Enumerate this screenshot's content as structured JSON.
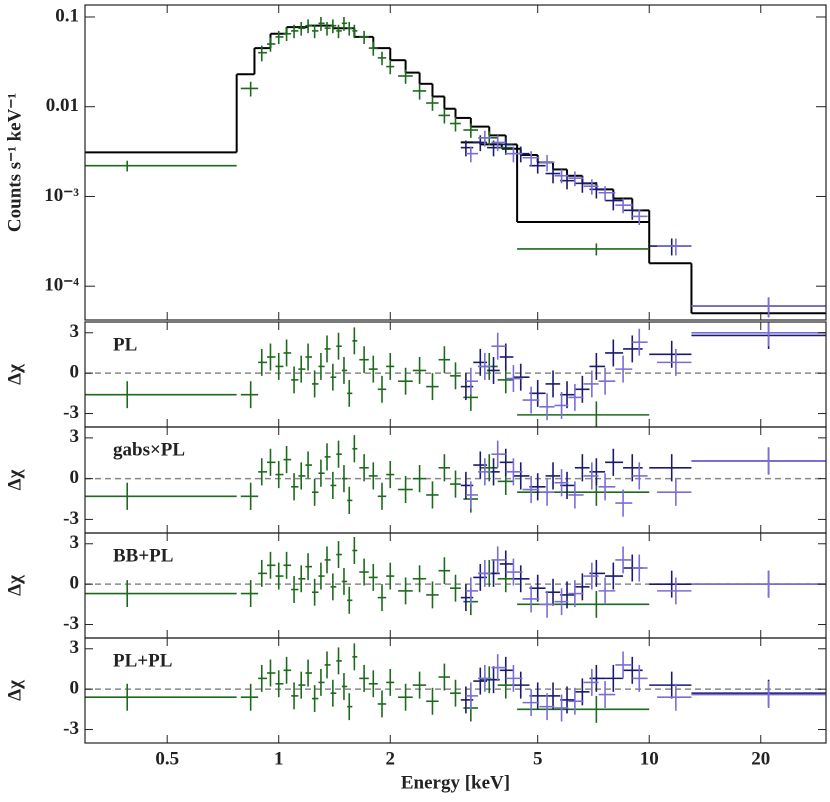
{
  "chart_data": {
    "type": "errorbar",
    "xlabel": "Energy [keV]",
    "ylabel": "Counts s⁻¹ keV⁻¹",
    "log_x": true,
    "log_y": true,
    "xlim": [
      0.3,
      30
    ],
    "xticks": [
      0.5,
      1,
      2,
      5,
      10,
      20
    ],
    "ylim": [
      4.2e-05,
      0.136
    ],
    "yticks": [
      0.1,
      0.01,
      {
        "value": 0.001,
        "label": "10⁻³"
      },
      {
        "value": 0.0001,
        "label": "10⁻⁴"
      }
    ],
    "series": [
      {
        "color": "#1d6a1d",
        "x": [
          0.39,
          0.84,
          0.9,
          0.95,
          1.0,
          1.05,
          1.1,
          1.15,
          1.2,
          1.25,
          1.3,
          1.35,
          1.4,
          1.45,
          1.5,
          1.55,
          1.6,
          1.7,
          1.8,
          1.9,
          2.0,
          2.2,
          2.4,
          2.6,
          2.8,
          3.0,
          3.3,
          3.7,
          4.1,
          7.2
        ],
        "x_lo": [
          0.3,
          0.79,
          0.88,
          0.93,
          0.98,
          1.03,
          1.08,
          1.13,
          1.18,
          1.23,
          1.28,
          1.33,
          1.38,
          1.43,
          1.48,
          1.53,
          1.58,
          1.65,
          1.75,
          1.85,
          1.95,
          2.1,
          2.3,
          2.5,
          2.7,
          2.9,
          3.15,
          3.5,
          3.9,
          4.4
        ],
        "x_hi": [
          0.77,
          0.88,
          0.93,
          0.98,
          1.03,
          1.08,
          1.13,
          1.18,
          1.23,
          1.28,
          1.33,
          1.38,
          1.43,
          1.48,
          1.53,
          1.58,
          1.63,
          1.75,
          1.85,
          1.95,
          2.05,
          2.3,
          2.5,
          2.7,
          2.9,
          3.1,
          3.45,
          3.9,
          4.3,
          10
        ],
        "values": [
          0.0022,
          0.016,
          0.04,
          0.05,
          0.06,
          0.065,
          0.07,
          0.075,
          0.08,
          0.07,
          0.085,
          0.075,
          0.08,
          0.07,
          0.085,
          0.075,
          0.07,
          0.06,
          0.045,
          0.035,
          0.028,
          0.022,
          0.015,
          0.011,
          0.008,
          0.0065,
          0.0055,
          0.0045,
          0.0035,
          0.00026
        ],
        "errors": [
          0.0003,
          0.003,
          0.008,
          0.009,
          0.01,
          0.011,
          0.012,
          0.013,
          0.014,
          0.012,
          0.015,
          0.013,
          0.014,
          0.012,
          0.015,
          0.013,
          0.012,
          0.01,
          0.008,
          0.006,
          0.005,
          0.004,
          0.003,
          0.002,
          0.0015,
          0.0012,
          0.001,
          0.0008,
          0.0006,
          4e-05
        ]
      },
      {
        "color": "#1a1a6e",
        "x": [
          3.2,
          3.5,
          3.8,
          4.1,
          4.5,
          5.0,
          5.5,
          6.0,
          6.6,
          7.2,
          8.0,
          9.0,
          11.5,
          21
        ],
        "x_lo": [
          3.1,
          3.35,
          3.65,
          3.95,
          4.3,
          4.75,
          5.25,
          5.75,
          6.3,
          6.9,
          7.6,
          8.5,
          10,
          13
        ],
        "x_hi": [
          3.35,
          3.65,
          3.95,
          4.3,
          4.75,
          5.25,
          5.75,
          6.3,
          6.9,
          7.6,
          8.5,
          9.6,
          13,
          30
        ],
        "values": [
          0.0035,
          0.004,
          0.0035,
          0.0038,
          0.003,
          0.0022,
          0.0018,
          0.0015,
          0.0014,
          0.0012,
          0.0009,
          0.0007,
          0.00028,
          6e-05
        ],
        "errors": [
          0.0007,
          0.0008,
          0.0007,
          0.0007,
          0.0006,
          0.0004,
          0.0004,
          0.0003,
          0.0003,
          0.00025,
          0.0002,
          0.00015,
          6e-05,
          1.5e-05
        ]
      },
      {
        "color": "#7a6ed6",
        "x": [
          3.3,
          3.6,
          3.9,
          4.3,
          4.8,
          5.3,
          5.8,
          6.3,
          7.0,
          7.6,
          8.5,
          9.4,
          11.8,
          21
        ],
        "x_lo": [
          3.2,
          3.45,
          3.75,
          4.1,
          4.55,
          5.05,
          5.55,
          6.05,
          6.65,
          7.3,
          8.1,
          9.0,
          10.5,
          13
        ],
        "x_hi": [
          3.45,
          3.75,
          4.1,
          4.55,
          5.05,
          5.55,
          6.05,
          6.65,
          7.3,
          8.1,
          9.0,
          9.9,
          13,
          30
        ],
        "values": [
          0.003,
          0.0045,
          0.004,
          0.003,
          0.0027,
          0.0024,
          0.0017,
          0.0016,
          0.0013,
          0.0011,
          0.0008,
          0.0006,
          0.00028,
          6e-05
        ],
        "errors": [
          0.0006,
          0.0009,
          0.0008,
          0.0006,
          0.0005,
          0.0005,
          0.0003,
          0.0003,
          0.00025,
          0.0002,
          0.00015,
          0.00012,
          6e-05,
          1.5e-05
        ]
      }
    ],
    "models": [
      {
        "color": "#000000",
        "edges": [
          0.3,
          0.77,
          0.86,
          0.95,
          1.05,
          1.2,
          1.4,
          1.6,
          1.8,
          2.0,
          2.2,
          2.4,
          2.6,
          2.8,
          3.0,
          3.3,
          3.7,
          4.1,
          4.4,
          10
        ],
        "values": [
          0.0031,
          0.023,
          0.045,
          0.065,
          0.077,
          0.08,
          0.075,
          0.06,
          0.045,
          0.033,
          0.024,
          0.018,
          0.013,
          0.0095,
          0.0075,
          0.006,
          0.0048,
          0.0038,
          0.00052
        ]
      },
      {
        "color": "#000000",
        "edges": [
          3.1,
          3.5,
          4.0,
          4.5,
          5.0,
          5.5,
          6.0,
          6.6,
          7.2,
          8.0,
          9.0,
          10,
          13,
          30
        ],
        "values": [
          0.004,
          0.0038,
          0.0034,
          0.0029,
          0.0024,
          0.002,
          0.0017,
          0.0014,
          0.0012,
          0.00095,
          0.0007,
          0.00018,
          5e-05
        ]
      }
    ],
    "residual_panels": [
      {
        "label": "PL",
        "ylabel": "Δχ",
        "ylim": [
          -4,
          3.8
        ],
        "yticks": [
          -3,
          0,
          3
        ],
        "residual_error": 1,
        "zero_line": true,
        "series": [
          {
            "values": [
              -1.6,
              -1.6,
              0.8,
              1.2,
              0.5,
              1.5,
              -0.5,
              0.3,
              1.2,
              -0.8,
              0.5,
              1.8,
              -0.3,
              2.0,
              0.2,
              -1.5,
              2.4,
              1.0,
              0.3,
              -1.2,
              0.5,
              -0.6,
              0.2,
              -1.0,
              1.0,
              -0.2,
              -1.8,
              0.5,
              -0.5,
              -3.1
            ]
          },
          {
            "values": [
              -1.0,
              0.8,
              0.2,
              1.2,
              -0.3,
              -1.5,
              -0.8,
              -1.6,
              -1.2,
              0.5,
              1.5,
              1.8,
              1.4,
              2.8
            ]
          },
          {
            "values": [
              -0.6,
              0.5,
              2.0,
              -0.4,
              -2.0,
              -2.5,
              -2.4,
              -1.8,
              -0.8,
              -0.6,
              0.3,
              2.3,
              0.8,
              3.0
            ]
          }
        ]
      },
      {
        "label": "gabs×PL",
        "ylabel": "Δχ",
        "ylim": [
          -4,
          3.8
        ],
        "yticks": [
          -3,
          0,
          3
        ],
        "residual_error": 1,
        "zero_line": true,
        "series": [
          {
            "values": [
              -1.3,
              -1.3,
              0.5,
              1.2,
              0.3,
              1.4,
              -0.6,
              0.2,
              1.0,
              -1.0,
              0.4,
              1.6,
              -0.5,
              1.8,
              0,
              -1.6,
              2.2,
              0.8,
              0.2,
              -1.3,
              0.3,
              -0.8,
              0,
              -1.2,
              0.8,
              -0.4,
              -1.5,
              0.8,
              -0.2,
              -1.0
            ]
          },
          {
            "values": [
              -0.5,
              1.0,
              0.5,
              1.2,
              0.2,
              -0.6,
              0.2,
              -0.5,
              0.8,
              0.5,
              1.2,
              0.8,
              0.8,
              1.3
            ]
          },
          {
            "values": [
              -1.2,
              0.5,
              1.8,
              0.5,
              -0.8,
              -1.0,
              -0.3,
              -1.2,
              0.2,
              -0.6,
              -1.8,
              0.2,
              -1.0,
              1.3
            ]
          }
        ]
      },
      {
        "label": "BB+PL",
        "ylabel": "Δχ",
        "ylim": [
          -4,
          3.8
        ],
        "yticks": [
          -3,
          0,
          3
        ],
        "residual_error": 1,
        "zero_line": true,
        "series": [
          {
            "values": [
              -0.7,
              -0.7,
              0.8,
              1.4,
              0.6,
              1.4,
              -0.4,
              0.4,
              1.3,
              -0.6,
              0.6,
              1.8,
              -0.2,
              2.2,
              0.2,
              -1.2,
              2.5,
              0.9,
              0.5,
              -1.0,
              0.6,
              -0.5,
              0.4,
              -0.8,
              1.0,
              -0.3,
              -1.3,
              0.8,
              0.4,
              -1.5
            ]
          },
          {
            "values": [
              -1.0,
              0.5,
              0.8,
              1.5,
              0.4,
              -0.3,
              -0.6,
              -0.8,
              -0.2,
              0.8,
              0.6,
              1.2,
              0,
              0
            ]
          },
          {
            "values": [
              -0.5,
              0.8,
              1.8,
              0.9,
              -1.1,
              -1.5,
              -1.3,
              -0.7,
              0.6,
              -0.5,
              1.8,
              1.2,
              -0.5,
              0
            ]
          }
        ]
      },
      {
        "label": "PL+PL",
        "ylabel": "Δχ",
        "ylim": [
          -4,
          3.8
        ],
        "yticks": [
          -3,
          0,
          3
        ],
        "residual_error": 1,
        "zero_line": true,
        "series": [
          {
            "values": [
              -0.6,
              -0.6,
              0.8,
              1.2,
              0.4,
              1.4,
              -0.5,
              0.3,
              1.2,
              -0.7,
              0.5,
              1.8,
              -0.3,
              2.1,
              0.2,
              -1.3,
              2.4,
              0.8,
              0.4,
              -1.1,
              0.5,
              -0.6,
              0.3,
              -0.9,
              0.9,
              -0.3,
              -1.4,
              0.7,
              0.3,
              -1.5
            ]
          },
          {
            "values": [
              -0.8,
              0.6,
              0.7,
              1.4,
              0.3,
              -0.5,
              -0.5,
              -0.8,
              -0.2,
              0.8,
              0.8,
              1.4,
              0.3,
              -0.3
            ]
          },
          {
            "values": [
              -0.5,
              0.8,
              1.6,
              0.8,
              -1.0,
              -1.3,
              -1.4,
              -0.9,
              0.5,
              -0.4,
              1.8,
              0.8,
              -0.6,
              -0.4
            ]
          }
        ]
      }
    ]
  }
}
